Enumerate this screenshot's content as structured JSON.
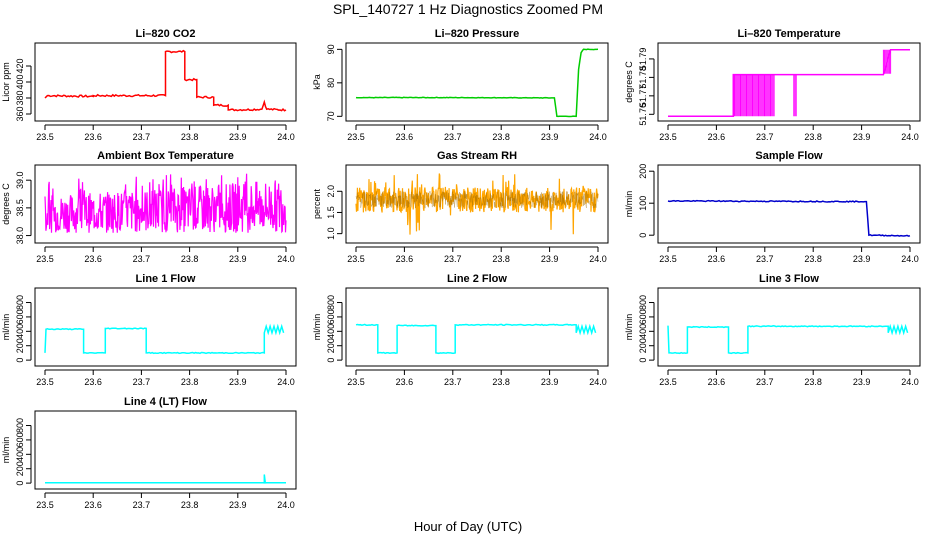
{
  "figure": {
    "title": "SPL_140727  1 Hz Diagnostics Zoomed PM",
    "xlabel": "Hour of Day (UTC)"
  },
  "chart_data": [
    {
      "type": "line",
      "title": "Li–820 CO2",
      "ylabel": "Licor ppm",
      "color": "#ff0000",
      "xticks": [
        "23.5",
        "23.6",
        "23.7",
        "23.8",
        "23.9",
        "24.0"
      ],
      "xlim": [
        23.5,
        24.0
      ],
      "yticks": [
        {
          "v": 360,
          "l": "360"
        },
        {
          "v": 380,
          "l": "380"
        },
        {
          "v": 400,
          "l": "400"
        },
        {
          "v": 420,
          "l": "420"
        }
      ],
      "ylim": [
        355,
        445
      ],
      "noise": 1.2,
      "points": [
        [
          23.5,
          380
        ],
        [
          23.505,
          383
        ],
        [
          23.6,
          382
        ],
        [
          23.6,
          383
        ],
        [
          23.75,
          383
        ],
        [
          23.75,
          438
        ],
        [
          23.79,
          438
        ],
        [
          23.79,
          403
        ],
        [
          23.815,
          403
        ],
        [
          23.815,
          381
        ],
        [
          23.85,
          381
        ],
        [
          23.85,
          371
        ],
        [
          23.88,
          371
        ],
        [
          23.88,
          365
        ],
        [
          23.95,
          366
        ],
        [
          23.955,
          375
        ],
        [
          23.96,
          366
        ],
        [
          24.0,
          365
        ]
      ]
    },
    {
      "type": "line",
      "title": "Li–820 Pressure",
      "ylabel": "kPa",
      "color": "#00cc00",
      "xticks": [
        "23.5",
        "23.6",
        "23.7",
        "23.8",
        "23.9",
        "24.0"
      ],
      "xlim": [
        23.5,
        24.0
      ],
      "yticks": [
        {
          "v": 70,
          "l": "70"
        },
        {
          "v": 80,
          "l": "80"
        },
        {
          "v": 90,
          "l": "90"
        }
      ],
      "ylim": [
        69.5,
        91
      ],
      "noise": 0.08,
      "points": [
        [
          23.5,
          75.6
        ],
        [
          23.7,
          75.6
        ],
        [
          23.91,
          75.5
        ],
        [
          23.915,
          70
        ],
        [
          23.955,
          70
        ],
        [
          23.96,
          84
        ],
        [
          23.965,
          89
        ],
        [
          23.97,
          90
        ],
        [
          24.0,
          90
        ]
      ]
    },
    {
      "type": "line",
      "title": "Li–820 Temperature",
      "ylabel": "degrees C",
      "color": "#ff00ff",
      "xticks": [
        "23.5",
        "23.6",
        "23.7",
        "23.8",
        "23.9",
        "24.0"
      ],
      "xlim": [
        23.5,
        24.0
      ],
      "yticks": [
        {
          "v": 51.76,
          "l": "51.76"
        },
        {
          "v": 51.77,
          "l": "51.77"
        },
        {
          "v": 51.78,
          "l": "51.78"
        },
        {
          "v": 51.79,
          "l": "51.79"
        }
      ],
      "ylim": [
        51.758,
        51.797
      ],
      "noise": 0,
      "flicker": [
        [
          23.635,
          23.72,
          51.759,
          51.7815
        ],
        [
          23.76,
          23.765,
          51.759,
          51.7815
        ],
        [
          23.945,
          23.96,
          51.782,
          51.795
        ]
      ],
      "points": [
        [
          23.5,
          51.759
        ],
        [
          23.635,
          51.759
        ],
        [
          23.635,
          51.7815
        ],
        [
          23.945,
          51.7815
        ],
        [
          23.96,
          51.795
        ],
        [
          24.0,
          51.795
        ]
      ]
    },
    {
      "type": "line",
      "title": "Ambient Box Temperature",
      "ylabel": "degrees C",
      "color": "#ff00ff",
      "xticks": [
        "23.5",
        "23.6",
        "23.7",
        "23.8",
        "23.9",
        "24.0"
      ],
      "xlim": [
        23.5,
        24.0
      ],
      "yticks": [
        {
          "v": 38.0,
          "l": "38.0"
        },
        {
          "v": 38.5,
          "l": "38.5"
        },
        {
          "v": 39.0,
          "l": "39.0"
        }
      ],
      "ylim": [
        37.92,
        39.22
      ],
      "noise": 0,
      "band": {
        "lo": 38.05,
        "hi_start": 38.72,
        "hi_end": 39.02,
        "spikes": 39.12
      },
      "points": [
        [
          23.5,
          38.3
        ],
        [
          24.0,
          38.45
        ]
      ]
    },
    {
      "type": "line",
      "title": "Gas Stream RH",
      "ylabel": "percent",
      "color": "#ffa500",
      "xticks": [
        "23.5",
        "23.6",
        "23.7",
        "23.8",
        "23.9",
        "24.0"
      ],
      "xlim": [
        23.5,
        24.0
      ],
      "yticks": [
        {
          "v": 1.0,
          "l": "1.0"
        },
        {
          "v": 1.5,
          "l": "1.5"
        },
        {
          "v": 2.0,
          "l": "2.0"
        }
      ],
      "ylim": [
        0.85,
        2.55
      ],
      "noise": 0,
      "band": {
        "lo": 1.5,
        "hi_start": 2.1,
        "hi_end": 2.1,
        "spikes": 2.45,
        "dips": 0.9
      },
      "points": [
        [
          23.5,
          1.8
        ],
        [
          24.0,
          1.8
        ]
      ]
    },
    {
      "type": "line",
      "title": "Sample Flow",
      "ylabel": "ml/min",
      "color": "#0000cc",
      "xticks": [
        "23.5",
        "23.6",
        "23.7",
        "23.8",
        "23.9",
        "24.0"
      ],
      "xlim": [
        23.5,
        24.0
      ],
      "yticks": [
        {
          "v": 0,
          "l": "0"
        },
        {
          "v": 100,
          "l": "100"
        },
        {
          "v": 200,
          "l": "200"
        }
      ],
      "ylim": [
        -15,
        210
      ],
      "noise": 1.5,
      "points": [
        [
          23.5,
          107
        ],
        [
          23.91,
          105
        ],
        [
          23.915,
          0
        ],
        [
          24.0,
          -2
        ]
      ]
    },
    {
      "type": "line",
      "title": "Line 1 Flow",
      "ylabel": "ml/min",
      "color": "#00ffff",
      "xticks": [
        "23.5",
        "23.6",
        "23.7",
        "23.8",
        "23.9",
        "24.0"
      ],
      "xlim": [
        23.5,
        24.0
      ],
      "yticks": [
        {
          "v": 0,
          "l": "0"
        },
        {
          "v": 200,
          "l": "200"
        },
        {
          "v": 400,
          "l": "400"
        },
        {
          "v": 600,
          "l": "600"
        },
        {
          "v": 800,
          "l": "800"
        }
      ],
      "ylim": [
        -40,
        960
      ],
      "noise": 6,
      "zigzag": [
        23.955,
        23.995,
        380,
        470
      ],
      "points": [
        [
          23.5,
          100
        ],
        [
          23.502,
          430
        ],
        [
          23.58,
          430
        ],
        [
          23.58,
          100
        ],
        [
          23.625,
          100
        ],
        [
          23.625,
          440
        ],
        [
          23.71,
          440
        ],
        [
          23.71,
          100
        ],
        [
          23.955,
          100
        ],
        [
          23.955,
          380
        ]
      ]
    },
    {
      "type": "line",
      "title": "Line 2 Flow",
      "ylabel": "ml/min",
      "color": "#00ffff",
      "xticks": [
        "23.5",
        "23.6",
        "23.7",
        "23.8",
        "23.9",
        "24.0"
      ],
      "xlim": [
        23.5,
        24.0
      ],
      "yticks": [
        {
          "v": 0,
          "l": "0"
        },
        {
          "v": 200,
          "l": "200"
        },
        {
          "v": 400,
          "l": "400"
        },
        {
          "v": 600,
          "l": "600"
        },
        {
          "v": 800,
          "l": "800"
        }
      ],
      "ylim": [
        -40,
        960
      ],
      "noise": 6,
      "zigzag": [
        23.955,
        23.995,
        380,
        470
      ],
      "points": [
        [
          23.5,
          490
        ],
        [
          23.545,
          490
        ],
        [
          23.545,
          100
        ],
        [
          23.585,
          100
        ],
        [
          23.585,
          480
        ],
        [
          23.665,
          480
        ],
        [
          23.665,
          100
        ],
        [
          23.705,
          100
        ],
        [
          23.705,
          490
        ],
        [
          23.955,
          490
        ]
      ]
    },
    {
      "type": "line",
      "title": "Line 3 Flow",
      "ylabel": "ml/min",
      "color": "#00ffff",
      "xticks": [
        "23.5",
        "23.6",
        "23.7",
        "23.8",
        "23.9",
        "24.0"
      ],
      "xlim": [
        23.5,
        24.0
      ],
      "yticks": [
        {
          "v": 0,
          "l": "0"
        },
        {
          "v": 200,
          "l": "200"
        },
        {
          "v": 400,
          "l": "400"
        },
        {
          "v": 600,
          "l": "600"
        },
        {
          "v": 800,
          "l": "800"
        }
      ],
      "ylim": [
        -40,
        960
      ],
      "noise": 6,
      "zigzag": [
        23.955,
        23.995,
        380,
        470
      ],
      "points": [
        [
          23.5,
          480
        ],
        [
          23.502,
          100
        ],
        [
          23.54,
          100
        ],
        [
          23.54,
          460
        ],
        [
          23.625,
          460
        ],
        [
          23.625,
          100
        ],
        [
          23.665,
          100
        ],
        [
          23.665,
          470
        ],
        [
          23.955,
          470
        ]
      ]
    },
    {
      "type": "line",
      "title": "Line 4 (LT) Flow",
      "ylabel": "ml/min",
      "color": "#00ffff",
      "xticks": [
        "23.5",
        "23.6",
        "23.7",
        "23.8",
        "23.9",
        "24.0"
      ],
      "xlim": [
        23.5,
        24.0
      ],
      "yticks": [
        {
          "v": 0,
          "l": "0"
        },
        {
          "v": 200,
          "l": "200"
        },
        {
          "v": 400,
          "l": "400"
        },
        {
          "v": 600,
          "l": "600"
        },
        {
          "v": 800,
          "l": "800"
        }
      ],
      "ylim": [
        -40,
        960
      ],
      "noise": 1,
      "points": [
        [
          23.5,
          5
        ],
        [
          23.955,
          5
        ],
        [
          23.955,
          120
        ],
        [
          23.957,
          5
        ],
        [
          24.0,
          5
        ]
      ]
    }
  ]
}
